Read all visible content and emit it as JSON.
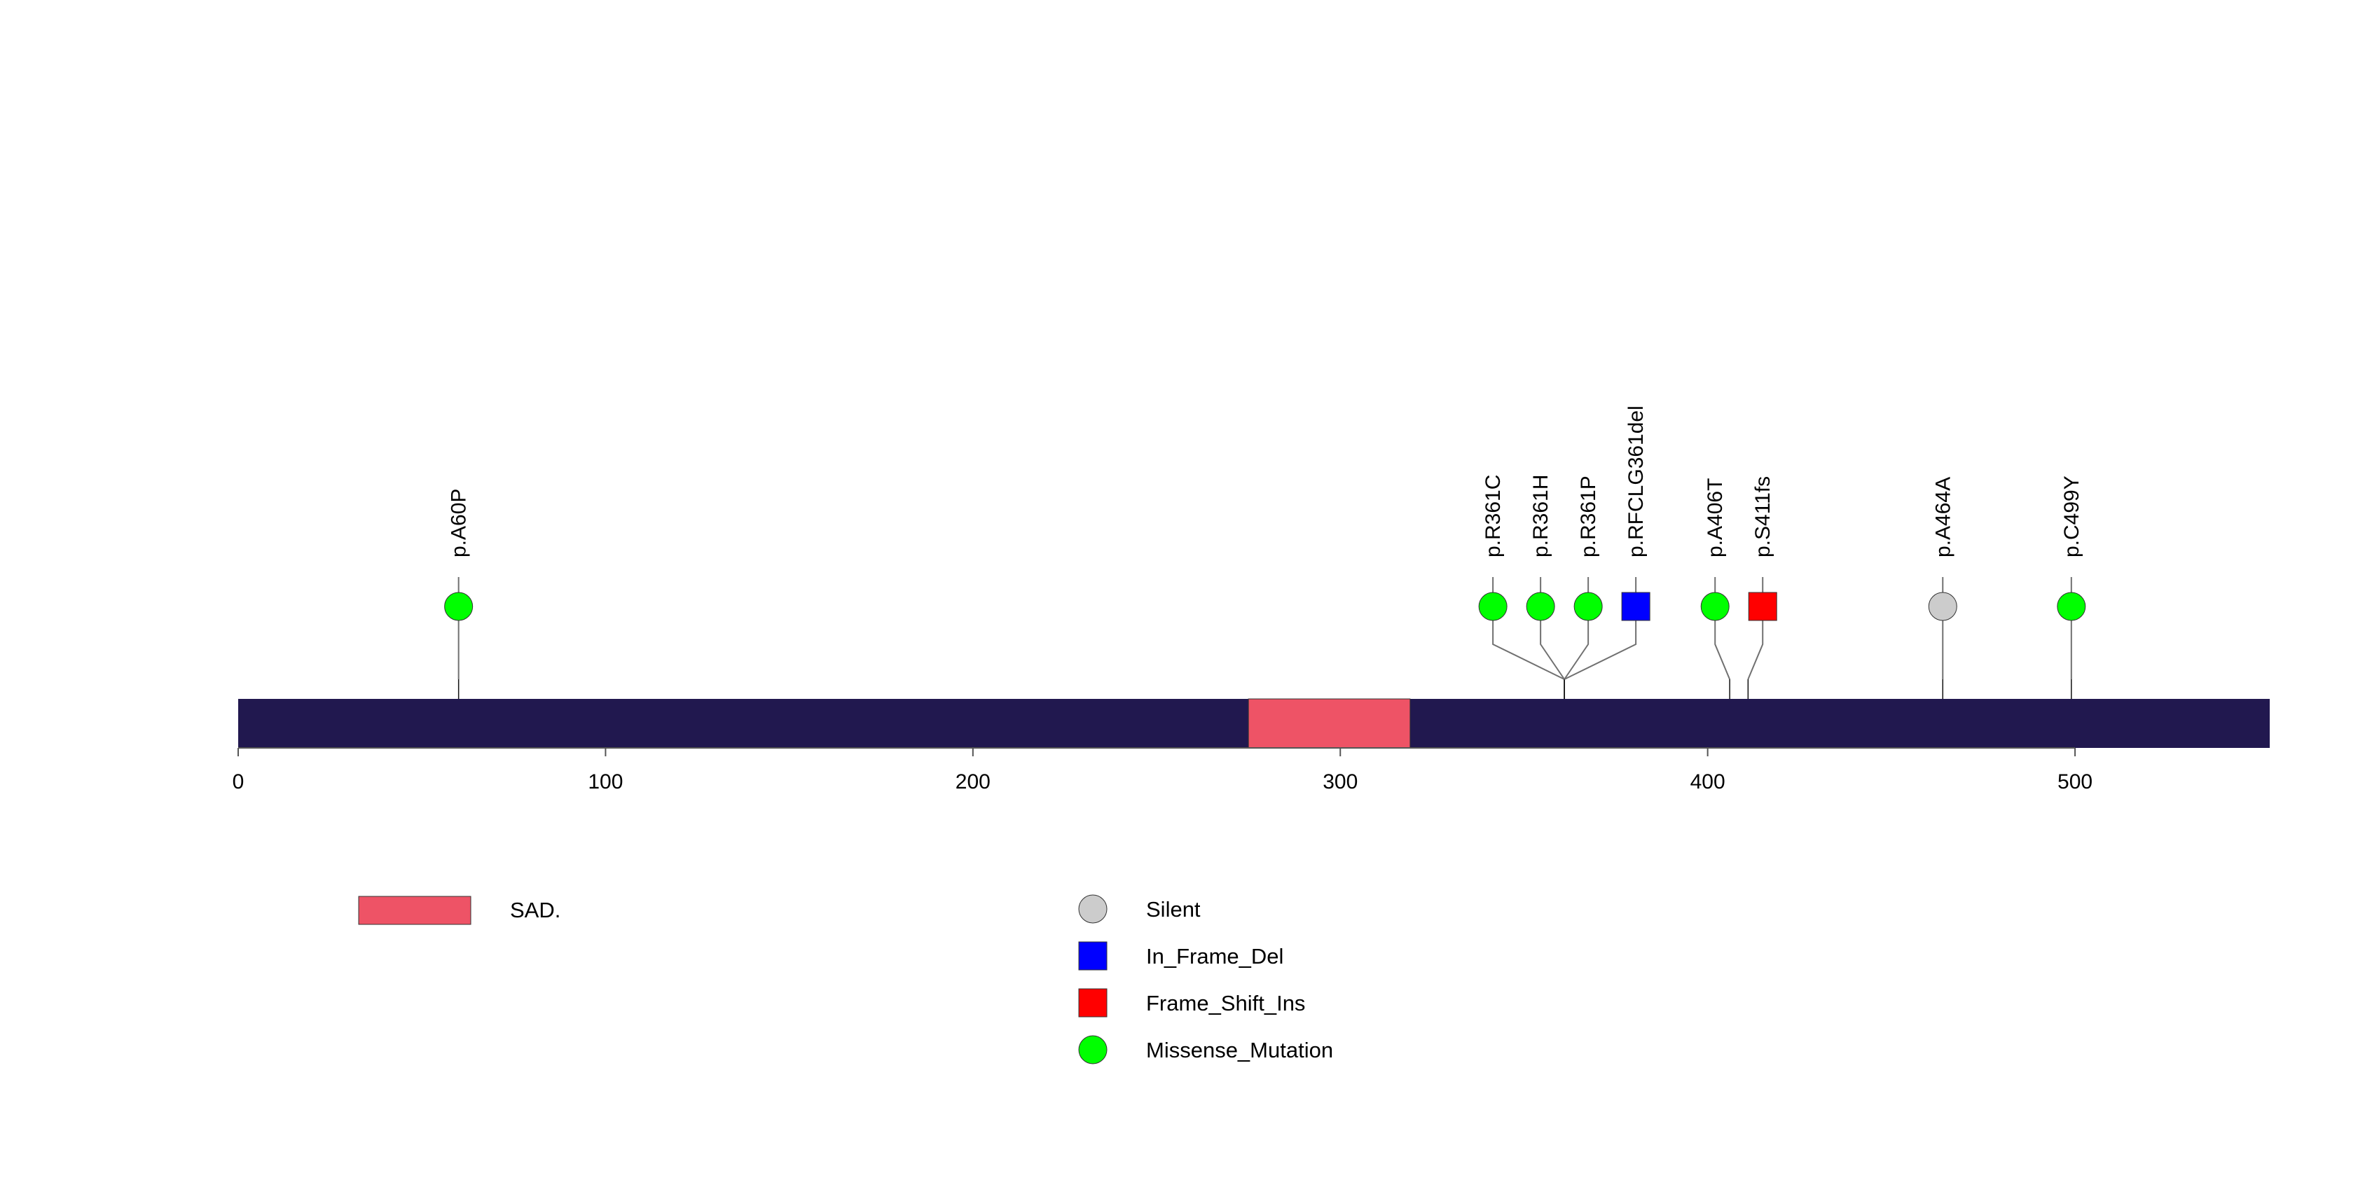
{
  "chart_data": {
    "type": "lollipop",
    "protein_length": 553,
    "x_ticks": [
      0,
      100,
      200,
      300,
      400,
      500
    ],
    "colors": {
      "backbone": "#21184f",
      "stem": "#707070",
      "outline": "#333333"
    },
    "domains": [
      {
        "name": "SAD.",
        "start": 275,
        "end": 319,
        "color": "#ee5366"
      }
    ],
    "mutations": [
      {
        "label": "p.A60P",
        "position": 60,
        "type": "Missense_Mutation"
      },
      {
        "label": "p.R361C",
        "position": 361,
        "type": "Missense_Mutation"
      },
      {
        "label": "p.R361H",
        "position": 361,
        "type": "Missense_Mutation"
      },
      {
        "label": "p.R361P",
        "position": 361,
        "type": "Missense_Mutation"
      },
      {
        "label": "p.RFCLG361del",
        "position": 361,
        "type": "In_Frame_Del"
      },
      {
        "label": "p.A406T",
        "position": 406,
        "type": "Missense_Mutation"
      },
      {
        "label": "p.S411fs",
        "position": 411,
        "type": "Frame_Shift_Ins"
      },
      {
        "label": "p.A464A",
        "position": 464,
        "type": "Silent"
      },
      {
        "label": "p.C499Y",
        "position": 499,
        "type": "Missense_Mutation"
      }
    ],
    "mutation_types": [
      {
        "name": "Silent",
        "shape": "circle",
        "color": "#cccccc"
      },
      {
        "name": "In_Frame_Del",
        "shape": "square",
        "color": "#0000ff"
      },
      {
        "name": "Frame_Shift_Ins",
        "shape": "square",
        "color": "#ff0000"
      },
      {
        "name": "Missense_Mutation",
        "shape": "circle",
        "color": "#00ff00"
      }
    ],
    "domain_legend": [
      {
        "name": "SAD.",
        "color": "#ee5366"
      }
    ]
  }
}
